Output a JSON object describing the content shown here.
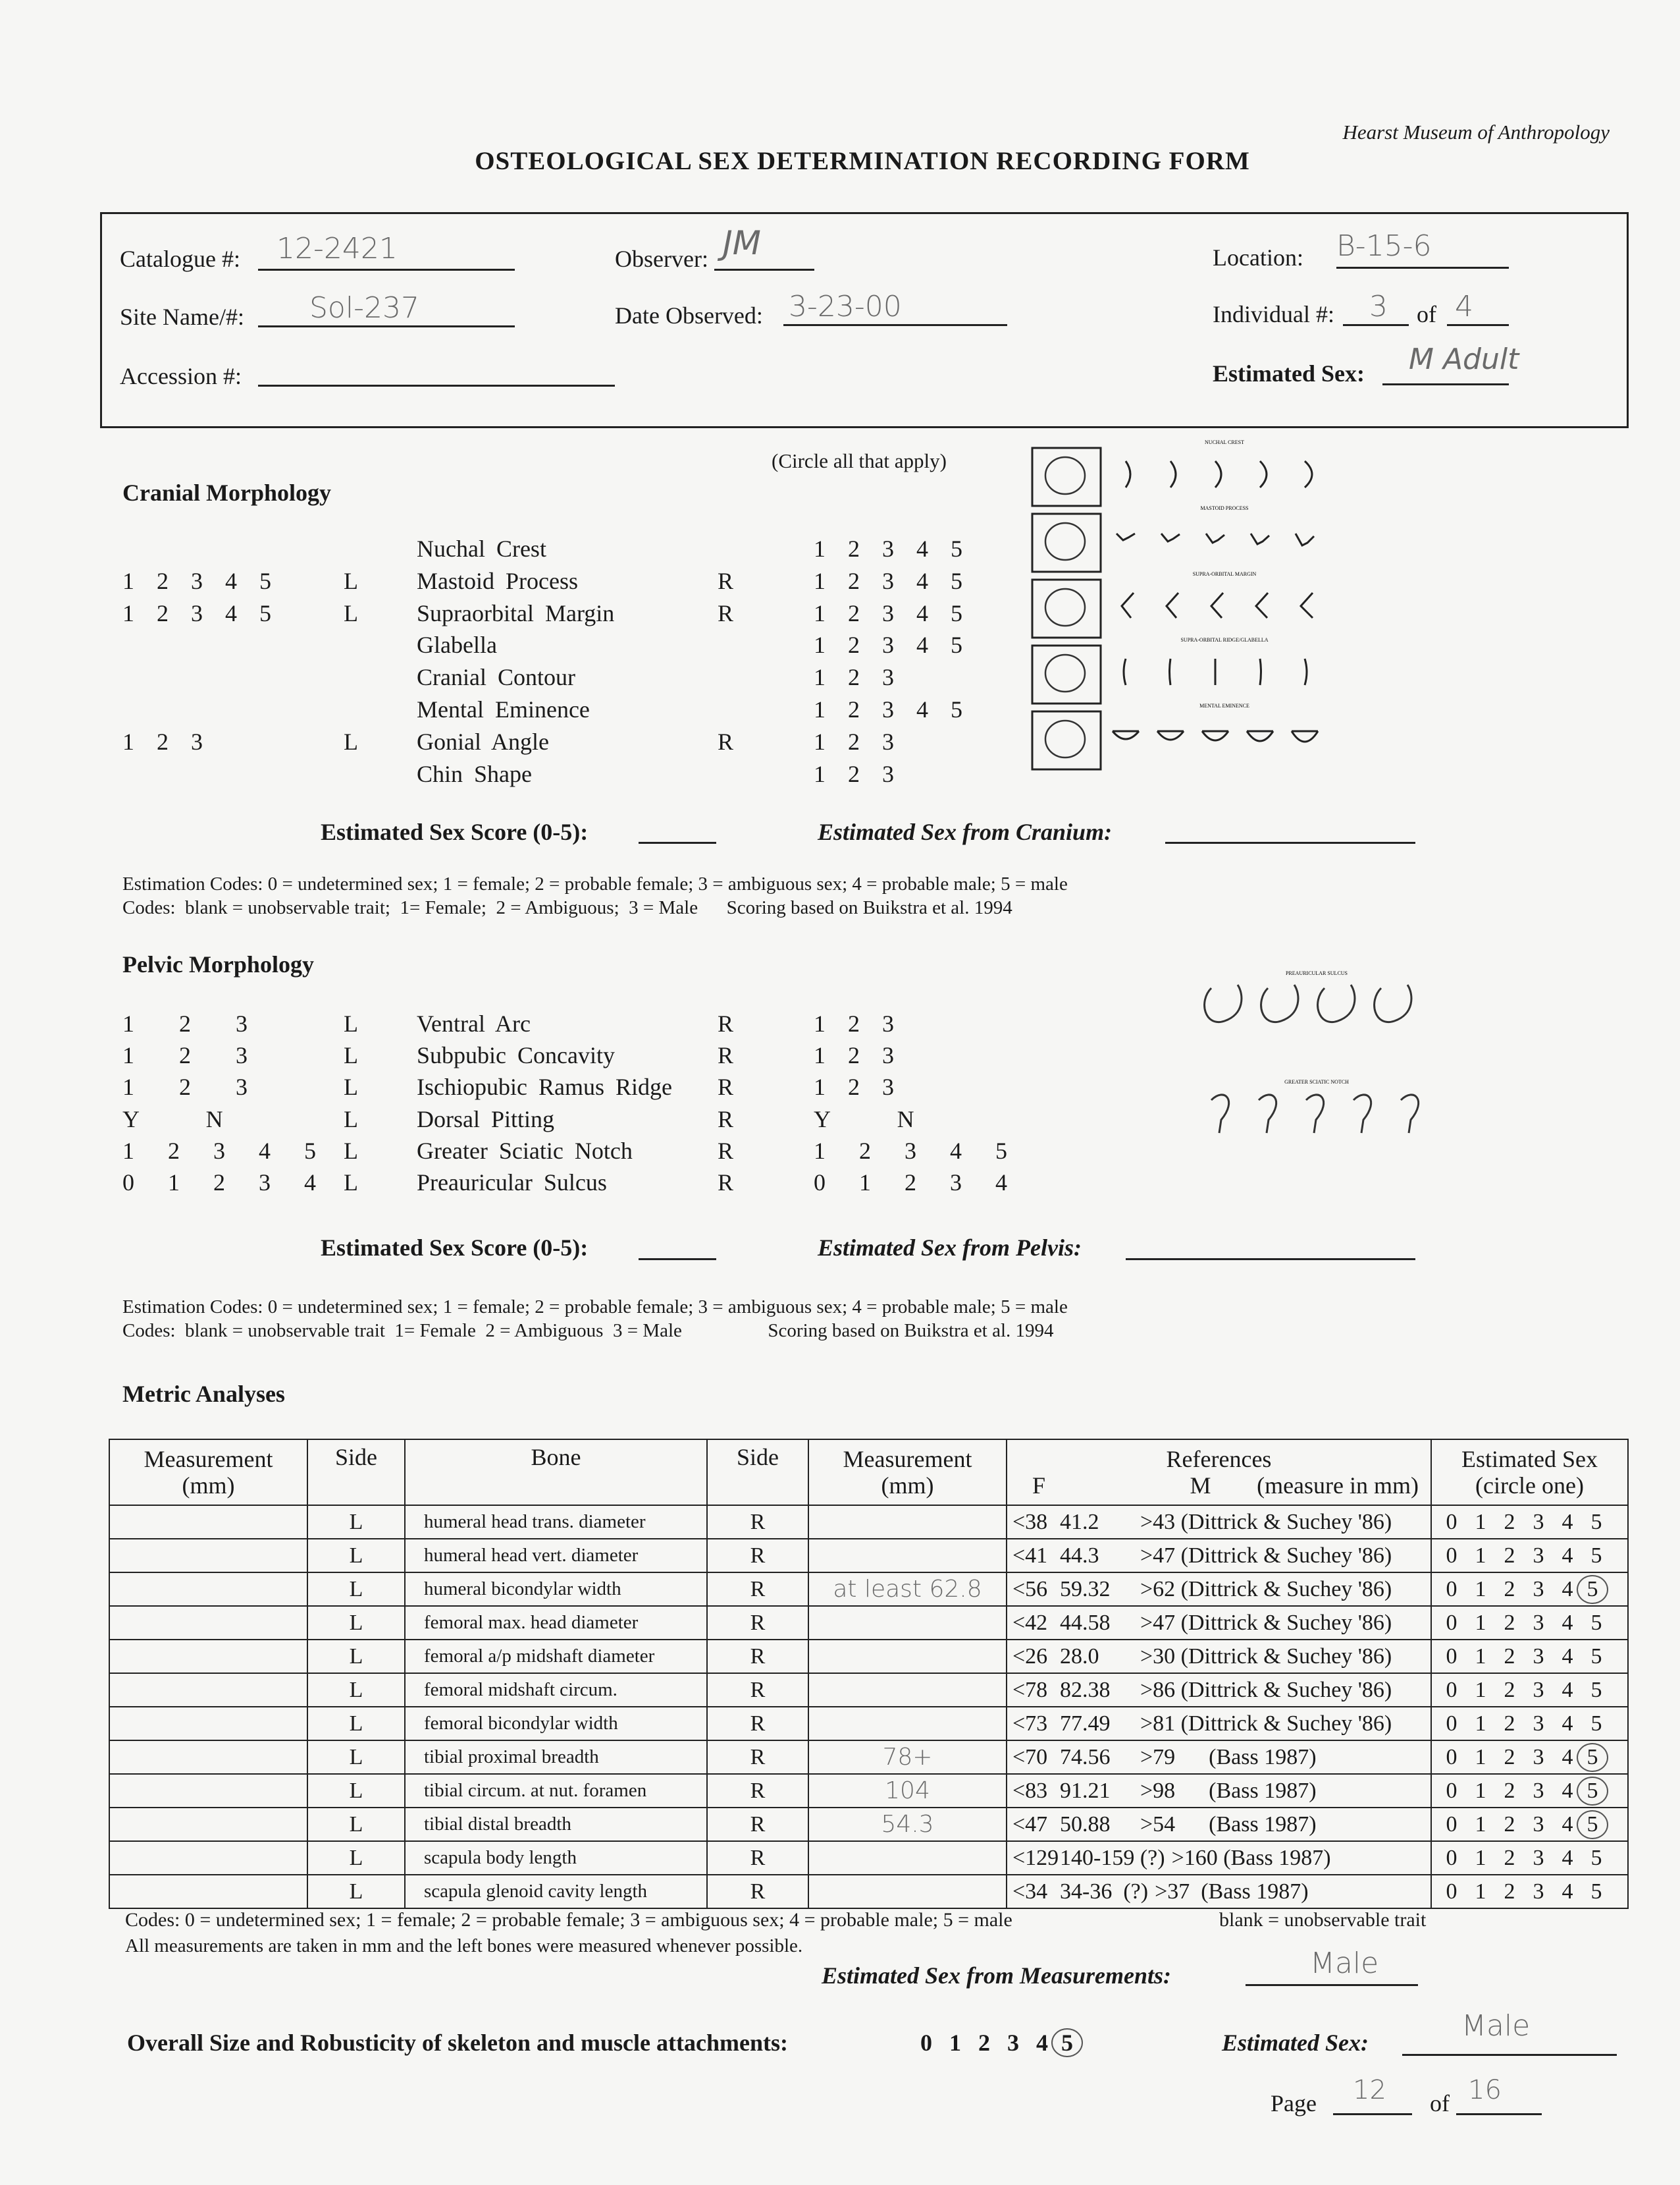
{
  "institution": "Hearst Museum of Anthropology",
  "title": "OSTEOLOGICAL SEX DETERMINATION RECORDING FORM",
  "header": {
    "catalogue_label": "Catalogue #:",
    "catalogue_value": "12-2421",
    "observer_label": "Observer:",
    "observer_value": "JM",
    "location_label": "Location:",
    "location_value": "B-15-6",
    "site_label": "Site Name/#:",
    "site_value": "Sol-237",
    "date_label": "Date Observed:",
    "date_value": "3-23-00",
    "individual_label": "Individual #:",
    "individual_value": "3",
    "of_label": "of",
    "individual_total": "4",
    "accession_label": "Accession #:",
    "accession_value": "",
    "est_sex_label": "Estimated Sex:",
    "est_sex_value": "M  Adult"
  },
  "cranial": {
    "heading": "Cranial Morphology",
    "instruction": "(Circle all that apply)",
    "rows": [
      {
        "left": "",
        "l": "",
        "trait": "Nuchal Crest",
        "r": "",
        "right": "1  2  3  4  5"
      },
      {
        "left": "1  2  3  4  5",
        "l": "L",
        "trait": "Mastoid Process",
        "r": "R",
        "right": "1  2  3  4  5"
      },
      {
        "left": "1  2  3  4  5",
        "l": "L",
        "trait": "Supraorbital Margin",
        "r": "R",
        "right": "1  2  3  4  5"
      },
      {
        "left": "",
        "l": "",
        "trait": "Glabella",
        "r": "",
        "right": "1  2  3  4  5"
      },
      {
        "left": "",
        "l": "",
        "trait": "Cranial Contour",
        "r": "",
        "right": "1  2  3"
      },
      {
        "left": "",
        "l": "",
        "trait": "Mental Eminence",
        "r": "",
        "right": "1  2  3  4  5"
      },
      {
        "left": "1  2  3",
        "l": "L",
        "trait": "Gonial Angle",
        "r": "R",
        "right": "1  2  3"
      },
      {
        "left": "",
        "l": "",
        "trait": "Chin Shape",
        "r": "",
        "right": "1  2  3"
      }
    ],
    "diagram_labels": [
      "NUCHAL CREST",
      "MASTOID PROCESS",
      "SUPRA-ORBITAL MARGIN",
      "SUPRA-ORBITAL RIDGE/GLABELLA",
      "MENTAL EMINENCE"
    ],
    "score_label": "Estimated Sex Score (0-5):",
    "sex_from_label": "Estimated Sex from Cranium:",
    "codes1": "Estimation Codes:  0 = undetermined sex;  1 = female;  2 = probable female;  3 = ambiguous sex;  4 = probable male; 5 = male",
    "codes2": "Codes:  blank = unobservable trait;  1= Female;  2 = Ambiguous;  3 = Male      Scoring based on Buikstra et al. 1994"
  },
  "pelvic": {
    "heading": "Pelvic Morphology",
    "rows": [
      {
        "left": "1    2    3",
        "l": "L",
        "trait": "Ventral Arc",
        "r": "R",
        "right": "1  2  3"
      },
      {
        "left": "1    2    3",
        "l": "L",
        "trait": "Subpubic Concavity",
        "r": "R",
        "right": "1  2  3"
      },
      {
        "left": "1    2    3",
        "l": "L",
        "trait": "Ischiopubic Ramus Ridge",
        "r": "R",
        "right": "1  2  3"
      },
      {
        "left": "Y      N",
        "l": "L",
        "trait": "Dorsal Pitting",
        "r": "R",
        "right": "Y      N"
      },
      {
        "left": "1   2   3   4   5",
        "l": "L",
        "trait": "Greater Sciatic Notch",
        "r": "R",
        "right": "1   2   3   4   5"
      },
      {
        "left": "0   1   2   3   4",
        "l": "L",
        "trait": "Preauricular Sulcus",
        "r": "R",
        "right": "0   1   2   3   4"
      }
    ],
    "diagram_labels": [
      "PREAURICULAR SULCUS",
      "GREATER SCIATIC NOTCH"
    ],
    "score_label": "Estimated Sex Score (0-5):",
    "sex_from_label": "Estimated Sex from Pelvis:",
    "codes1": "Estimation Codes:  0 = undetermined sex;  1 = female;  2 = probable female;  3 = ambiguous sex;  4 = probable male; 5 = male",
    "codes2": "Codes:  blank = unobservable trait  1= Female  2 = Ambiguous  3 = Male                  Scoring based on Buikstra et al. 1994"
  },
  "metric": {
    "heading": "Metric Analyses",
    "columns": [
      "Measurement (mm)",
      "Side",
      "Bone",
      "Side",
      "Measurement (mm)",
      "References",
      "Estimated Sex"
    ],
    "ref_sub": {
      "f": "F",
      "m": "M",
      "note": "(measure in mm)"
    },
    "sex_sub": "(circle one)",
    "scores": [
      "0",
      "1",
      "2",
      "3",
      "4",
      "5"
    ],
    "rows": [
      {
        "left_side": "L",
        "bone": "humeral head trans. diameter",
        "right_side": "R",
        "measurement": "",
        "f": "<38",
        "m": "41.2",
        "ref": ">43 (Dittrick & Suchey '86)",
        "circled": null
      },
      {
        "left_side": "L",
        "bone": "humeral head vert. diameter",
        "right_side": "R",
        "measurement": "",
        "f": "<41",
        "m": "44.3",
        "ref": ">47 (Dittrick & Suchey '86)",
        "circled": null
      },
      {
        "left_side": "L",
        "bone": "humeral bicondylar width",
        "right_side": "R",
        "measurement": "at least 62.8",
        "f": "<56",
        "m": "59.32",
        "ref": ">62 (Dittrick & Suchey '86)",
        "circled": "5"
      },
      {
        "left_side": "L",
        "bone": "femoral max. head diameter",
        "right_side": "R",
        "measurement": "",
        "f": "<42",
        "m": "44.58",
        "ref": ">47 (Dittrick & Suchey '86)",
        "circled": null
      },
      {
        "left_side": "L",
        "bone": "femoral a/p midshaft diameter",
        "right_side": "R",
        "measurement": "",
        "f": "<26",
        "m": "28.0",
        "ref": ">30 (Dittrick & Suchey '86)",
        "circled": null
      },
      {
        "left_side": "L",
        "bone": "femoral midshaft circum.",
        "right_side": "R",
        "measurement": "",
        "f": "<78",
        "m": "82.38",
        "ref": ">86 (Dittrick & Suchey '86)",
        "circled": null
      },
      {
        "left_side": "L",
        "bone": "femoral bicondylar width",
        "right_side": "R",
        "measurement": "",
        "f": "<73",
        "m": "77.49",
        "ref": ">81 (Dittrick & Suchey '86)",
        "circled": null
      },
      {
        "left_side": "L",
        "bone": "tibial proximal breadth",
        "right_side": "R",
        "measurement": "78+",
        "f": "<70",
        "m": "74.56",
        "ref": ">79      (Bass 1987)",
        "circled": "5"
      },
      {
        "left_side": "L",
        "bone": "tibial circum. at nut. foramen",
        "right_side": "R",
        "measurement": "104",
        "f": "<83",
        "m": "91.21",
        "ref": ">98      (Bass 1987)",
        "circled": "5"
      },
      {
        "left_side": "L",
        "bone": "tibial distal breadth",
        "right_side": "R",
        "measurement": "54.3",
        "f": "<47",
        "m": "50.88",
        "ref": ">54      (Bass 1987)",
        "circled": "5"
      },
      {
        "left_side": "L",
        "bone": "scapula body length",
        "right_side": "R",
        "measurement": "",
        "f": "<129",
        "m": "140-159 (?)",
        "ref": ">160 (Bass 1987)",
        "circled": null
      },
      {
        "left_side": "L",
        "bone": "scapula glenoid cavity length",
        "right_side": "R",
        "measurement": "",
        "f": "<34",
        "m": "34-36  (?)",
        "ref": ">37  (Bass 1987)",
        "circled": null
      }
    ],
    "codes1": "Codes: 0 = undetermined sex;  1 = female;  2 = probable female;  3 = ambiguous sex;  4 = probable male; 5 = male",
    "codes1b": "blank = unobservable trait",
    "codes2": "All measurements are taken in mm and the left bones were measured whenever possible.",
    "sex_from_label": "Estimated Sex from Measurements:",
    "sex_from_value": "Male"
  },
  "overall": {
    "label": "Overall Size and Robusticity of skeleton and muscle attachments:",
    "scores": [
      "0",
      "1",
      "2",
      "3",
      "4",
      "5"
    ],
    "circled": "5",
    "est_sex_label": "Estimated Sex:",
    "est_sex_value": "Male"
  },
  "page": {
    "label": "Page",
    "current": "12",
    "of_label": "of",
    "total": "16"
  }
}
